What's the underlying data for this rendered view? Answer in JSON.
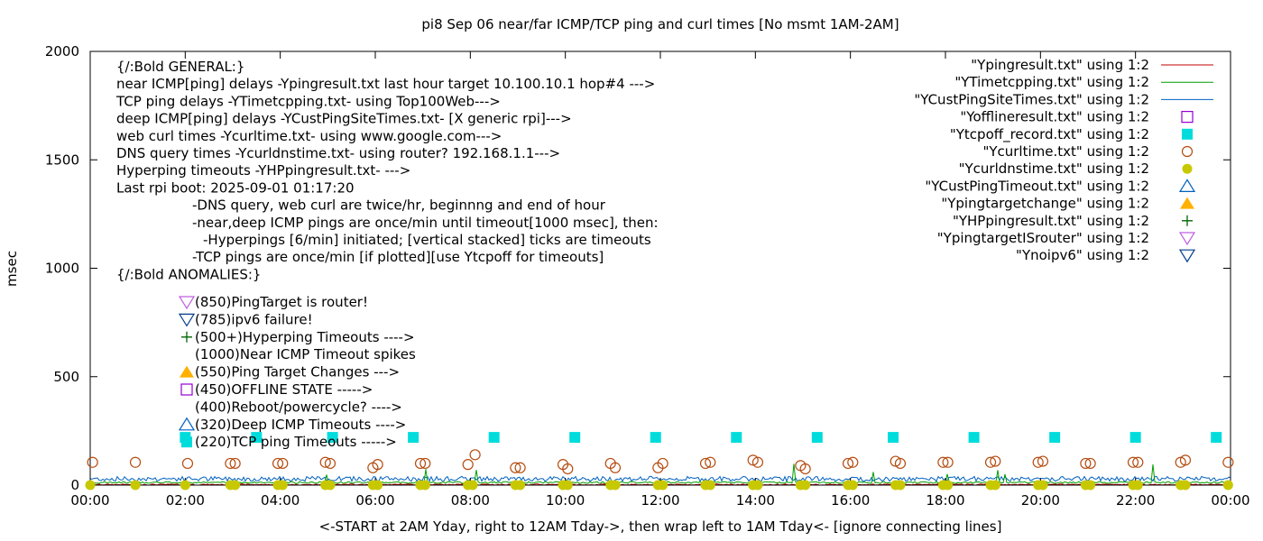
{
  "chart_data": {
    "type": "line",
    "title": "pi8 Sep 06  near/far ICMP/TCP ping and curl times [No msmt 1AM-2AM]",
    "xlabel": "<-START at 2AM Yday, right to 12AM Tday->, then wrap left to 1AM Tday<- [ignore connecting lines]",
    "ylabel": "msec",
    "xlim": [
      0,
      24
    ],
    "ylim": [
      0,
      2000
    ],
    "x_tick_values": [
      0,
      2,
      4,
      6,
      8,
      10,
      12,
      14,
      16,
      18,
      20,
      22,
      24
    ],
    "x_tick_labels": [
      "00:00",
      "02:00",
      "04:00",
      "06:00",
      "08:00",
      "10:00",
      "12:00",
      "14:00",
      "16:00",
      "18:00",
      "20:00",
      "22:00",
      "00:00"
    ],
    "y_ticks": [
      0,
      500,
      1000,
      1500,
      2000
    ],
    "legend_position": "top-right",
    "legend": [
      {
        "label": "\"Ypingresult.txt\" using 1:2",
        "marker": "line",
        "color": "#c00000"
      },
      {
        "label": "\"YTimetcpping.txt\" using 1:2",
        "marker": "line",
        "color": "#009e00"
      },
      {
        "label": "\"YCustPingSiteTimes.txt\" using 1:2",
        "marker": "line",
        "color": "#0060c0"
      },
      {
        "label": "\"Yofflineresult.txt\" using 1:2",
        "marker": "open-square",
        "color": "#9400d3"
      },
      {
        "label": "\"Ytcpoff_record.txt\" using 1:2",
        "marker": "filled-square",
        "color": "#00dcdc"
      },
      {
        "label": "\"Ycurltime.txt\" using 1:2",
        "marker": "open-circle",
        "color": "#b54b0f"
      },
      {
        "label": "\"Ycurldnstime.txt\" using 1:2",
        "marker": "filled-circle",
        "color": "#c8c800"
      },
      {
        "label": "\"YCustPingTimeout.txt\" using 1:2",
        "marker": "open-triangle-up",
        "color": "#0060c0"
      },
      {
        "label": "\"Ypingtargetchange\" using 1:2",
        "marker": "filled-triangle-up",
        "color": "#ffb000"
      },
      {
        "label": "\"YHPpingresult.txt\" using 1:2",
        "marker": "plus",
        "color": "#006400"
      },
      {
        "label": "\"YpingtargetISrouter\" using 1:2",
        "marker": "open-triangle-down",
        "color": "#c060e0"
      },
      {
        "label": "\"Ynoipv6\" using 1:2",
        "marker": "open-triangle-down",
        "color": "#003c8c"
      }
    ],
    "annotation_lines": [
      "{/:Bold GENERAL:}",
      "near ICMP[ping] delays -Ypingresult.txt last hour target 10.100.10.1 hop#4 --->",
      "TCP ping delays -YTimetcpping.txt- using Top100Web--->",
      "deep ICMP[ping] delays -YCustPingSiteTimes.txt- [X generic rpi]--->",
      "web curl times -Ycurltime.txt- using www.google.com--->",
      "DNS query times -Ycurldnstime.txt- using router? 192.168.1.1--->",
      "Hyperping timeouts -YHPpingresult.txt- --->",
      "Last rpi boot: 2025-09-01 01:17:20",
      "-DNS query, web curl are twice/hr, beginnng and end of hour",
      "-near,deep ICMP pings are once/min until timeout[1000 msec], then:",
      "-Hyperpings [6/min] initiated; [vertical stacked] ticks are timeouts",
      "-TCP pings are once/min [if plotted][use Ytcpoff for timeouts]",
      "{/:Bold ANOMALIES:}"
    ],
    "anomaly_lines": [
      {
        "text": "(850)PingTarget is router!",
        "marker": "open-triangle-down",
        "color": "#c060e0"
      },
      {
        "text": "(785)ipv6 failure!",
        "marker": "open-triangle-down",
        "color": "#003c8c"
      },
      {
        "text": "(500+)Hyperping Timeouts ---->",
        "marker": "plus",
        "color": "#006400"
      },
      {
        "text": "(1000)Near ICMP Timeout spikes",
        "marker": "none",
        "color": ""
      },
      {
        "text": "(550)Ping Target Changes --->",
        "marker": "filled-triangle-up",
        "color": "#ffb000"
      },
      {
        "text": "(450)OFFLINE STATE ----->",
        "marker": "open-square",
        "color": "#9400d3"
      },
      {
        "text": "(400)Reboot/powercycle? ---->",
        "marker": "none",
        "color": ""
      },
      {
        "text": "(320)Deep ICMP Timeouts ---->",
        "marker": "open-triangle-up",
        "color": "#0060c0"
      },
      {
        "text": "(220)TCP ping Timeouts ----->",
        "marker": "filled-square",
        "color": "#00dcdc"
      }
    ],
    "series": [
      {
        "name": "\"Ytcpoff_record.txt\" using 1:2",
        "marker": "filled-square",
        "color": "#00dcdc",
        "x": [
          2.0,
          3.5,
          5.1,
          6.8,
          8.5,
          10.2,
          11.9,
          13.6,
          15.3,
          16.9,
          18.6,
          20.3,
          22.0,
          23.7
        ],
        "y": [
          220,
          220,
          220,
          220,
          220,
          220,
          220,
          220,
          220,
          220,
          220,
          220,
          220,
          220
        ]
      },
      {
        "name": "\"Ycurltime.txt\" using 1:2",
        "marker": "open-circle",
        "color": "#b54b0f",
        "x": [
          0.05,
          0.95,
          2.05,
          2.95,
          3.05,
          3.95,
          4.05,
          4.95,
          5.05,
          5.95,
          6.05,
          6.95,
          7.05,
          7.95,
          8.1,
          8.95,
          9.05,
          9.95,
          10.05,
          10.95,
          11.05,
          11.95,
          12.05,
          12.95,
          13.05,
          13.95,
          14.05,
          14.95,
          15.05,
          15.95,
          16.05,
          16.95,
          17.05,
          17.95,
          18.05,
          18.95,
          19.05,
          19.95,
          20.05,
          20.95,
          21.05,
          21.95,
          22.05,
          22.95,
          23.05,
          23.95
        ],
        "y": [
          105,
          105,
          100,
          100,
          100,
          100,
          100,
          105,
          100,
          80,
          95,
          100,
          100,
          95,
          140,
          80,
          80,
          95,
          75,
          100,
          80,
          80,
          100,
          100,
          105,
          115,
          105,
          90,
          75,
          100,
          105,
          110,
          100,
          105,
          105,
          105,
          110,
          105,
          110,
          100,
          100,
          105,
          105,
          105,
          115,
          105
        ]
      },
      {
        "name": "\"Ycurldnstime.txt\" using 1:2",
        "marker": "filled-circle",
        "color": "#c8c800",
        "x": [
          0.0,
          0.95,
          2.0,
          2.95,
          3.05,
          3.95,
          4.05,
          4.95,
          5.05,
          5.95,
          6.05,
          6.95,
          7.05,
          7.95,
          8.05,
          8.95,
          9.05,
          9.95,
          10.05,
          10.95,
          11.05,
          11.95,
          12.05,
          12.95,
          13.05,
          13.95,
          14.05,
          14.95,
          15.05,
          15.95,
          16.05,
          16.95,
          17.05,
          17.95,
          18.05,
          18.95,
          19.05,
          19.95,
          20.05,
          20.95,
          21.05,
          21.95,
          22.05,
          22.95,
          23.05,
          23.95
        ],
        "y": [
          0,
          0,
          0,
          0,
          0,
          0,
          0,
          0,
          0,
          0,
          0,
          0,
          0,
          0,
          0,
          0,
          0,
          0,
          0,
          0,
          0,
          0,
          0,
          0,
          0,
          0,
          0,
          0,
          0,
          0,
          0,
          0,
          0,
          0,
          0,
          0,
          0,
          0,
          0,
          0,
          0,
          0,
          0,
          0,
          0,
          0
        ]
      }
    ]
  }
}
